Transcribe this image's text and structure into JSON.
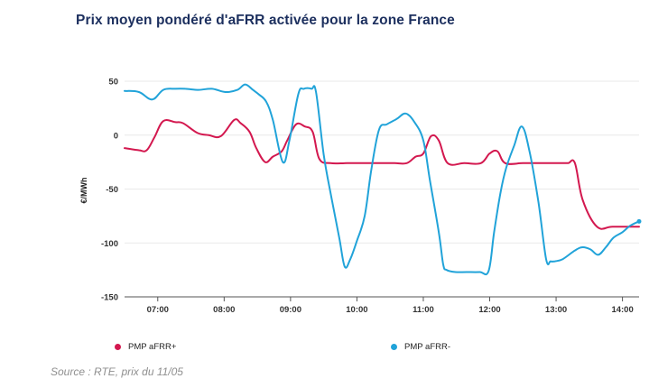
{
  "title": "Prix moyen pondéré d'aFRR activée pour la zone France",
  "source": "Source : RTE, prix du 11/05",
  "colors": {
    "plus": "#d3184f",
    "minus": "#21a3d9",
    "title": "#1c2f5e"
  },
  "chart_data": {
    "type": "line",
    "title": "Prix moyen pondéré d'aFRR activée pour la zone France",
    "ylabel": "€/MWh",
    "xlabel": "",
    "ylim": [
      -150,
      50
    ],
    "xlim": [
      "06:30",
      "14:15"
    ],
    "y_ticks": [
      50,
      0,
      -50,
      -100,
      -150
    ],
    "y_tick_labels": [
      "50",
      "0",
      "-50",
      "-100",
      "-150"
    ],
    "x_ticks": [
      "07:00",
      "08:00",
      "09:00",
      "10:00",
      "11:00",
      "12:00",
      "13:00",
      "14:00"
    ],
    "grid": "horizontal",
    "legend_position": "bottom",
    "series": [
      {
        "name": "PMP aFRR+",
        "color": "#d3184f",
        "x": [
          "06:30",
          "06:43",
          "06:50",
          "06:57",
          "07:05",
          "07:16",
          "07:23",
          "07:36",
          "07:46",
          "07:57",
          "08:09",
          "08:15",
          "08:23",
          "08:29",
          "08:37",
          "08:44",
          "08:52",
          "08:57",
          "09:05",
          "09:13",
          "09:20",
          "09:26",
          "09:36",
          "09:51",
          "10:08",
          "10:20",
          "10:34",
          "10:45",
          "10:53",
          "11:00",
          "11:07",
          "11:14",
          "11:22",
          "11:37",
          "11:52",
          "12:00",
          "12:07",
          "12:14",
          "12:30",
          "12:45",
          "13:05",
          "13:11",
          "13:17",
          "13:24",
          "13:37",
          "13:51",
          "14:15"
        ],
        "y": [
          -12,
          -14,
          -14,
          -2,
          13,
          12,
          11,
          2,
          0,
          -1,
          14,
          11,
          3,
          -12,
          -25,
          -20,
          -15,
          -5,
          10,
          8,
          3,
          -22,
          -26,
          -26,
          -26,
          -26,
          -26,
          -26,
          -20,
          -17,
          -1,
          -5,
          -26,
          -26,
          -26,
          -17,
          -15,
          -26,
          -26,
          -26,
          -26,
          -26,
          -26,
          -60,
          -85,
          -85,
          -85
        ]
      },
      {
        "name": "PMP aFRR-",
        "color": "#21a3d9",
        "x": [
          "06:30",
          "06:43",
          "06:55",
          "07:05",
          "07:16",
          "07:25",
          "07:37",
          "07:49",
          "08:01",
          "08:12",
          "08:19",
          "08:26",
          "08:31",
          "08:38",
          "08:44",
          "08:53",
          "08:59",
          "09:07",
          "09:12",
          "09:19",
          "09:23",
          "09:30",
          "09:37",
          "09:44",
          "09:49",
          "09:54",
          "10:00",
          "10:07",
          "10:13",
          "10:20",
          "10:27",
          "10:36",
          "10:44",
          "10:52",
          "11:00",
          "11:06",
          "11:14",
          "11:18",
          "11:21",
          "11:29",
          "11:39",
          "11:51",
          "11:59",
          "12:04",
          "12:10",
          "12:15",
          "12:22",
          "12:29",
          "12:36",
          "12:44",
          "12:51",
          "12:55",
          "12:59",
          "13:06",
          "13:17",
          "13:24",
          "13:31",
          "13:38",
          "13:45",
          "13:52",
          "14:00",
          "14:07",
          "14:15"
        ],
        "y": [
          41,
          40,
          33,
          42,
          43,
          43,
          42,
          43,
          40,
          42,
          47,
          42,
          38,
          31,
          14,
          -25,
          -5,
          38,
          43,
          43,
          40,
          -18,
          -58,
          -95,
          -122,
          -115,
          -98,
          -75,
          -32,
          5,
          10,
          15,
          20,
          12,
          -5,
          -42,
          -90,
          -120,
          -125,
          -127,
          -127,
          -127,
          -126,
          -90,
          -52,
          -30,
          -10,
          8,
          -15,
          -62,
          -115,
          -117,
          -117,
          -115,
          -107,
          -104,
          -106,
          -111,
          -104,
          -95,
          -90,
          -84,
          -80
        ]
      }
    ]
  }
}
